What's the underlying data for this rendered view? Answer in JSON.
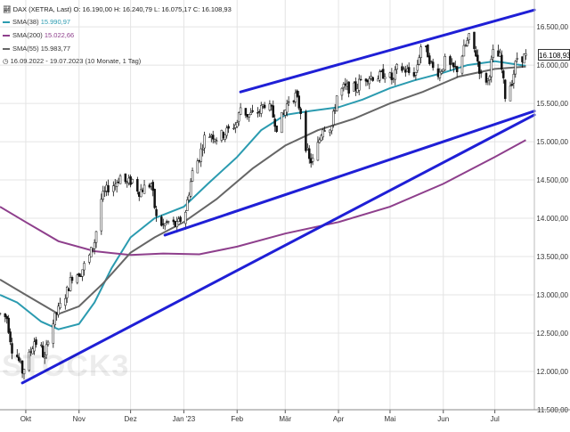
{
  "header": {
    "symbol_icon": "chart-icon",
    "text": "DAX (XETRA, Last)  O: 16.190,00  H: 16.240,79  L: 16.075,17  C: 16.108,93"
  },
  "legend": [
    {
      "label": "SMA(38)",
      "value": "15.990,97",
      "color": "#2b9bb0"
    },
    {
      "label": "SMA(200)",
      "value": "15.022,66",
      "color": "#8e3f8c"
    },
    {
      "label": "SMA(55)",
      "value": "15.983,77",
      "color": "#666666"
    }
  ],
  "range_text": "16.09.2022 - 19.07.2023  (10 Monate, 1 Tag)",
  "clock_icon": "clock-icon",
  "watermark": "STOCK3",
  "last_price": "16.108,93",
  "chart_data": {
    "type": "candlestick",
    "ylim": [
      11500,
      16850
    ],
    "y_ticks": [
      11500,
      12000,
      12500,
      13000,
      13500,
      14000,
      14500,
      15000,
      15500,
      16000,
      16500
    ],
    "y_tick_labels": [
      "11.500,00",
      "12.000,00",
      "12.500,00",
      "13.000,00",
      "13.500,00",
      "14.000,00",
      "14.500,00",
      "15.000,00",
      "15.500,00",
      "16.000,00",
      "16.500,00"
    ],
    "x_range": [
      "2022-09-16",
      "2023-07-24"
    ],
    "x_ticks": [
      "2022-10-01",
      "2022-11-01",
      "2022-12-01",
      "2023-01-01",
      "2023-02-01",
      "2023-03-01",
      "2023-04-01",
      "2023-05-01",
      "2023-06-01",
      "2023-07-01"
    ],
    "x_tick_labels": [
      "Okt",
      "Nov",
      "Dez",
      "Jan '23",
      "Feb",
      "Mär",
      "Apr",
      "Mai",
      "Jun",
      "Jul"
    ],
    "price_path": [
      [
        "2022-09-16",
        12750
      ],
      [
        "2022-09-20",
        12700
      ],
      [
        "2022-09-23",
        12300
      ],
      [
        "2022-09-26",
        12200
      ],
      [
        "2022-09-29",
        12000
      ],
      [
        "2022-10-03",
        12200
      ],
      [
        "2022-10-06",
        12400
      ],
      [
        "2022-10-10",
        12300
      ],
      [
        "2022-10-12",
        12150
      ],
      [
        "2022-10-14",
        12450
      ],
      [
        "2022-10-18",
        12700
      ],
      [
        "2022-10-21",
        12850
      ],
      [
        "2022-10-25",
        13050
      ],
      [
        "2022-10-28",
        13250
      ],
      [
        "2022-11-02",
        13300
      ],
      [
        "2022-11-07",
        13500
      ],
      [
        "2022-11-10",
        13700
      ],
      [
        "2022-11-14",
        14250
      ],
      [
        "2022-11-18",
        14400
      ],
      [
        "2022-11-22",
        14450
      ],
      [
        "2022-11-25",
        14550
      ],
      [
        "2022-11-29",
        14450
      ],
      [
        "2022-12-02",
        14500
      ],
      [
        "2022-12-06",
        14350
      ],
      [
        "2022-12-09",
        14400
      ],
      [
        "2022-12-13",
        14450
      ],
      [
        "2022-12-16",
        14000
      ],
      [
        "2022-12-20",
        13900
      ],
      [
        "2022-12-23",
        13950
      ],
      [
        "2022-12-28",
        13900
      ],
      [
        "2023-01-02",
        14100
      ],
      [
        "2023-01-06",
        14600
      ],
      [
        "2023-01-10",
        14800
      ],
      [
        "2023-01-13",
        15050
      ],
      [
        "2023-01-17",
        15100
      ],
      [
        "2023-01-20",
        15050
      ],
      [
        "2023-01-24",
        15100
      ],
      [
        "2023-01-27",
        15150
      ],
      [
        "2023-02-01",
        15250
      ],
      [
        "2023-02-03",
        15450
      ],
      [
        "2023-02-07",
        15350
      ],
      [
        "2023-02-10",
        15350
      ],
      [
        "2023-02-14",
        15400
      ],
      [
        "2023-02-17",
        15500
      ],
      [
        "2023-02-21",
        15400
      ],
      [
        "2023-02-24",
        15200
      ],
      [
        "2023-02-28",
        15350
      ],
      [
        "2023-03-03",
        15550
      ],
      [
        "2023-03-07",
        15600
      ],
      [
        "2023-03-10",
        15400
      ],
      [
        "2023-03-13",
        14950
      ],
      [
        "2023-03-15",
        14750
      ],
      [
        "2023-03-17",
        14750
      ],
      [
        "2023-03-20",
        14950
      ],
      [
        "2023-03-23",
        15200
      ],
      [
        "2023-03-28",
        15200
      ],
      [
        "2023-03-31",
        15600
      ],
      [
        "2023-04-04",
        15700
      ],
      [
        "2023-04-11",
        15700
      ],
      [
        "2023-04-14",
        15800
      ],
      [
        "2023-04-18",
        15850
      ],
      [
        "2023-04-21",
        15850
      ],
      [
        "2023-04-25",
        15850
      ],
      [
        "2023-04-28",
        15900
      ],
      [
        "2023-05-03",
        15800
      ],
      [
        "2023-05-05",
        15950
      ],
      [
        "2023-05-09",
        15950
      ],
      [
        "2023-05-12",
        15900
      ],
      [
        "2023-05-16",
        15900
      ],
      [
        "2023-05-19",
        16250
      ],
      [
        "2023-05-23",
        16150
      ],
      [
        "2023-05-26",
        15950
      ],
      [
        "2023-05-30",
        15900
      ],
      [
        "2023-06-02",
        16050
      ],
      [
        "2023-06-06",
        15950
      ],
      [
        "2023-06-09",
        15950
      ],
      [
        "2023-06-13",
        16200
      ],
      [
        "2023-06-16",
        16350
      ],
      [
        "2023-06-20",
        16150
      ],
      [
        "2023-06-23",
        15850
      ],
      [
        "2023-06-27",
        15800
      ],
      [
        "2023-06-30",
        16150
      ],
      [
        "2023-07-04",
        16100
      ],
      [
        "2023-07-07",
        15600
      ],
      [
        "2023-07-11",
        15800
      ],
      [
        "2023-07-14",
        16100
      ],
      [
        "2023-07-19",
        16110
      ]
    ],
    "series": [
      {
        "name": "SMA(38)",
        "color": "#2b9bb0",
        "points": [
          [
            "2022-09-16",
            13000
          ],
          [
            "2022-09-26",
            12900
          ],
          [
            "2022-10-10",
            12650
          ],
          [
            "2022-10-20",
            12550
          ],
          [
            "2022-11-01",
            12620
          ],
          [
            "2022-11-10",
            12900
          ],
          [
            "2022-11-20",
            13350
          ],
          [
            "2022-12-01",
            13750
          ],
          [
            "2022-12-15",
            14000
          ],
          [
            "2023-01-01",
            14150
          ],
          [
            "2023-01-15",
            14450
          ],
          [
            "2023-02-01",
            14800
          ],
          [
            "2023-02-15",
            15150
          ],
          [
            "2023-03-01",
            15350
          ],
          [
            "2023-03-15",
            15400
          ],
          [
            "2023-04-01",
            15450
          ],
          [
            "2023-04-15",
            15550
          ],
          [
            "2023-05-01",
            15700
          ],
          [
            "2023-05-15",
            15800
          ],
          [
            "2023-06-01",
            15900
          ],
          [
            "2023-06-15",
            16000
          ],
          [
            "2023-07-01",
            16050
          ],
          [
            "2023-07-19",
            15990
          ]
        ]
      },
      {
        "name": "SMA(200)",
        "color": "#8e3f8c",
        "points": [
          [
            "2022-09-16",
            14150
          ],
          [
            "2022-10-01",
            13950
          ],
          [
            "2022-10-20",
            13700
          ],
          [
            "2022-11-10",
            13570
          ],
          [
            "2022-12-01",
            13520
          ],
          [
            "2022-12-20",
            13540
          ],
          [
            "2023-01-10",
            13530
          ],
          [
            "2023-02-01",
            13630
          ],
          [
            "2023-03-01",
            13800
          ],
          [
            "2023-04-01",
            13950
          ],
          [
            "2023-05-01",
            14150
          ],
          [
            "2023-06-01",
            14450
          ],
          [
            "2023-07-01",
            14800
          ],
          [
            "2023-07-19",
            15020
          ]
        ]
      },
      {
        "name": "SMA(55)",
        "color": "#666666",
        "points": [
          [
            "2022-09-16",
            13200
          ],
          [
            "2022-10-01",
            13000
          ],
          [
            "2022-10-20",
            12750
          ],
          [
            "2022-11-01",
            12850
          ],
          [
            "2022-11-15",
            13150
          ],
          [
            "2022-12-01",
            13550
          ],
          [
            "2022-12-15",
            13750
          ],
          [
            "2023-01-01",
            13950
          ],
          [
            "2023-01-20",
            14250
          ],
          [
            "2023-02-10",
            14650
          ],
          [
            "2023-03-01",
            14950
          ],
          [
            "2023-03-20",
            15150
          ],
          [
            "2023-04-10",
            15300
          ],
          [
            "2023-05-01",
            15500
          ],
          [
            "2023-05-20",
            15650
          ],
          [
            "2023-06-10",
            15850
          ],
          [
            "2023-07-01",
            15950
          ],
          [
            "2023-07-19",
            15980
          ]
        ]
      }
    ],
    "trendlines": [
      {
        "color": "#1f1fd6",
        "from": [
          "2023-02-03",
          15650
        ],
        "to": [
          "2023-07-24",
          16720
        ]
      },
      {
        "color": "#1f1fd6",
        "from": [
          "2022-12-21",
          13780
        ],
        "to": [
          "2023-07-24",
          15400
        ]
      },
      {
        "color": "#1f1fd6",
        "from": [
          "2022-09-29",
          11850
        ],
        "to": [
          "2023-07-24",
          15350
        ]
      }
    ]
  }
}
